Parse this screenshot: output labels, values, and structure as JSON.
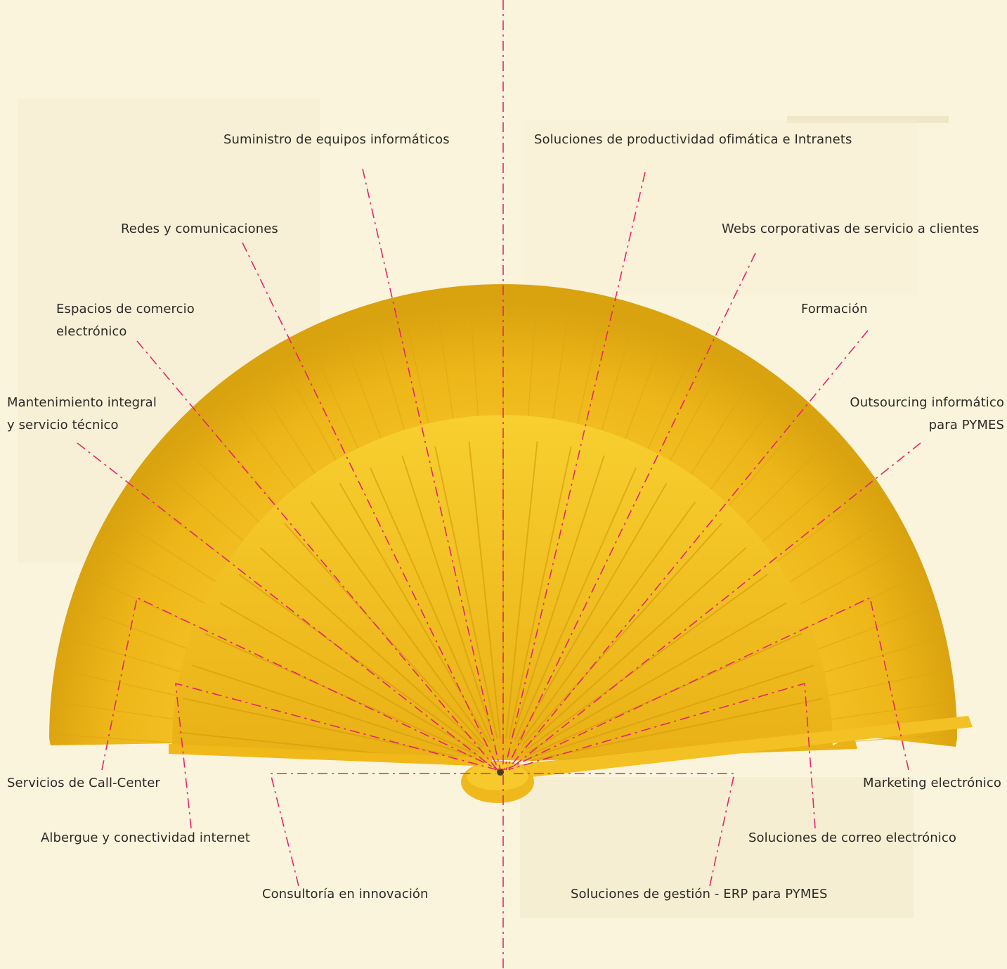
{
  "labels": {
    "suministro": "Suministro de equipos informáticos",
    "productividad": "Soluciones de productividad ofimática e  Intranets",
    "redes": "Redes y comunicaciones",
    "webs": "Webs corporativas de servicio a clientes",
    "espacios_1": "Espacios de comercio",
    "espacios_2": "electrónico",
    "formacion": "Formación",
    "mantenimiento_1": "Mantenimiento integral",
    "mantenimiento_2": "y servicio técnico",
    "outsourcing_1": "Outsourcing informático",
    "outsourcing_2": "para PYMES",
    "callcenter": "Servicios de Call-Center",
    "marketing": "Marketing electrónico",
    "albergue": "Albergue y conectividad internet",
    "correo": "Soluciones de correo electrónico",
    "consultoria": "Consultoría en innovación",
    "gestion": "Soluciones de gestión - ERP para PYMES"
  },
  "colors": {
    "background": "#fbf4dd",
    "fan_yellow": "#f2bd1e",
    "fan_dark": "#d99d10",
    "leader_line": "#e6246e",
    "text": "#2d2a26"
  }
}
